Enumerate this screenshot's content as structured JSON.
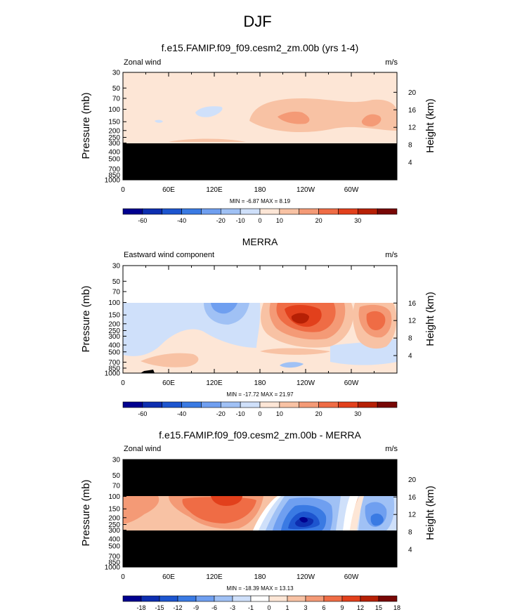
{
  "page_title": "DJF",
  "chart_data": [
    {
      "type": "heatmap",
      "title": "f.e15.FAMIP.f09_f09.cesm2_zm.00b (yrs 1-4)",
      "left_label": "Zonal wind",
      "units": "m/s",
      "ylabel": "Pressure (mb)",
      "ylabel_right": "Height (km)",
      "pressure_ticks": [
        "30",
        "50",
        "70",
        "100",
        "150",
        "200",
        "250",
        "300",
        "400",
        "500",
        "700",
        "850",
        "1000"
      ],
      "height_ticks": [
        "20",
        "16",
        "12",
        "8",
        "4"
      ],
      "x_ticks": [
        "0",
        "60E",
        "120E",
        "180",
        "120W",
        "60W"
      ],
      "stats": "MIN = -6.87  MAX =  8.19",
      "colorbar_labels": [
        "-60",
        "-40",
        "-20",
        "-10",
        "0",
        "10",
        "20",
        "30"
      ],
      "masked_pressure_mb": [
        300,
        1000
      ],
      "features": [
        {
          "lon": 120,
          "p": 100,
          "value": -3
        },
        {
          "lon": 240,
          "p": 150,
          "value": 8
        },
        {
          "lon": 330,
          "p": 150,
          "value": 7
        }
      ]
    },
    {
      "type": "heatmap",
      "title": "MERRA",
      "left_label": "Eastward wind component",
      "units": "m/s",
      "ylabel": "Pressure (mb)",
      "ylabel_right": "Height (km)",
      "pressure_ticks": [
        "30",
        "50",
        "70",
        "100",
        "150",
        "200",
        "250",
        "300",
        "400",
        "500",
        "700",
        "850",
        "1000"
      ],
      "height_ticks": [
        "16",
        "12",
        "8",
        "4"
      ],
      "x_ticks": [
        "0",
        "60E",
        "120E",
        "180",
        "120W",
        "60W"
      ],
      "stats": "MIN = -17.72  MAX =  21.97",
      "colorbar_labels": [
        "-60",
        "-40",
        "-20",
        "-10",
        "0",
        "10",
        "20",
        "30"
      ],
      "features": [
        {
          "lon": 130,
          "p": 120,
          "value": -14
        },
        {
          "lon": 245,
          "p": 200,
          "value": 22
        },
        {
          "lon": 333,
          "p": 200,
          "value": 16
        },
        {
          "lon": 225,
          "p": 900,
          "value": -5
        }
      ]
    },
    {
      "type": "heatmap",
      "title": "f.e15.FAMIP.f09_f09.cesm2_zm.00b - MERRA",
      "left_label": "Zonal wind",
      "units": "m/s",
      "ylabel": "Pressure (mb)",
      "ylabel_right": "Height (km)",
      "pressure_ticks": [
        "30",
        "50",
        "70",
        "100",
        "150",
        "200",
        "250",
        "300",
        "400",
        "500",
        "700",
        "850",
        "1000"
      ],
      "height_ticks": [
        "20",
        "16",
        "12",
        "8",
        "4"
      ],
      "x_ticks": [
        "0",
        "60E",
        "120E",
        "180",
        "120W",
        "60W"
      ],
      "stats": "MIN = -18.39  MAX =  13.13",
      "colorbar_labels": [
        "-18",
        "-15",
        "-12",
        "-9",
        "-6",
        "-3",
        "-1",
        "0",
        "1",
        "3",
        "6",
        "9",
        "12",
        "15",
        "18"
      ],
      "masked_pressure_mb": [
        [
          30,
          100
        ],
        [
          300,
          1000
        ]
      ],
      "features": [
        {
          "lon": 140,
          "p": 130,
          "value": 12
        },
        {
          "lon": 245,
          "p": 200,
          "value": -18
        },
        {
          "lon": 335,
          "p": 200,
          "value": -10
        }
      ]
    }
  ],
  "colors": {
    "main_scale": [
      "#00008f",
      "#0d2eb0",
      "#1d55cf",
      "#3a7ae3",
      "#6f9ff0",
      "#a0c1f5",
      "#cfe0fa",
      "#fde6d6",
      "#f8c2a4",
      "#f49a76",
      "#ef6c45",
      "#e2401c",
      "#b62005",
      "#780705"
    ],
    "diff_scale": [
      "#00008f",
      "#0d2eb0",
      "#1d55cf",
      "#3a7ae3",
      "#6f9ff0",
      "#a0c1f5",
      "#cfe0fa",
      "#ffffff",
      "#fde6d6",
      "#f8c2a4",
      "#f49a76",
      "#ef6c45",
      "#e2401c",
      "#b62005",
      "#780705"
    ]
  }
}
